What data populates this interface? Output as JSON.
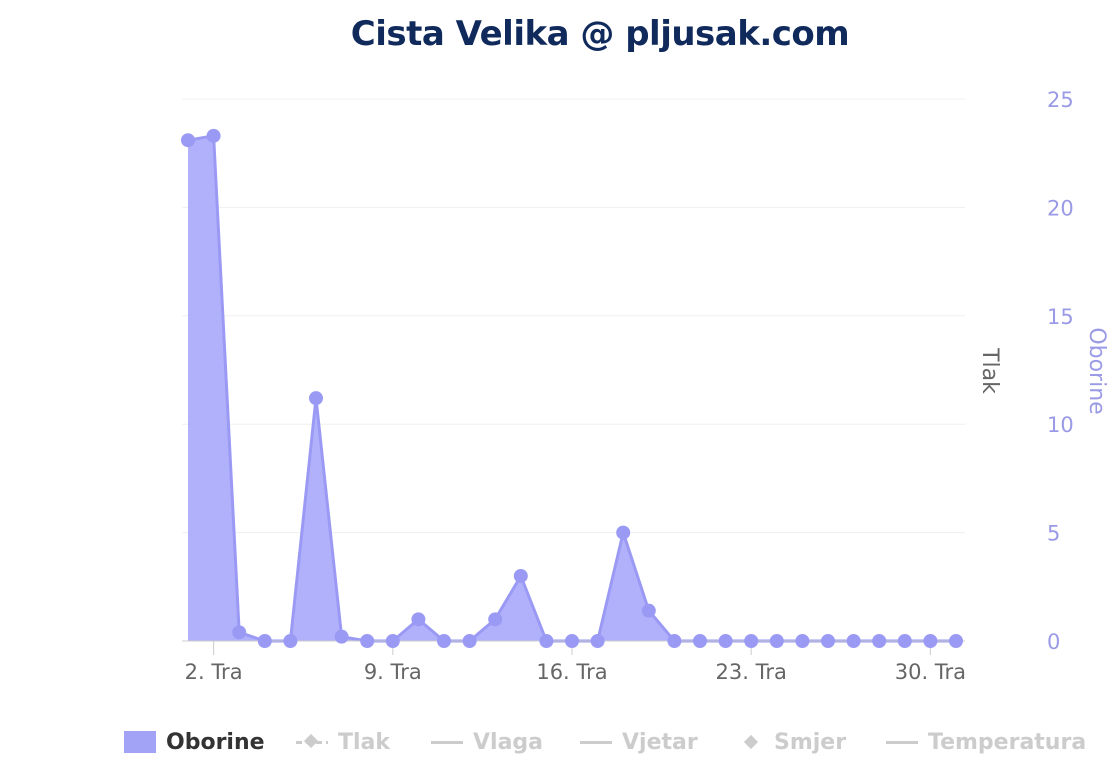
{
  "title": "Cista Velika @ pljusak.com",
  "colors": {
    "series": "#9a9af5",
    "fill": "#a9a9fb",
    "axis_text": "#9a9ae6",
    "title": "#102a5c",
    "grid": "#f0f0f0"
  },
  "chart_data": {
    "type": "area",
    "title": "Cista Velika @ pljusak.com",
    "x_tick_labels": [
      "2. Tra",
      "9. Tra",
      "16. Tra",
      "23. Tra",
      "30. Tra"
    ],
    "x_tick_days": [
      2,
      9,
      16,
      23,
      30
    ],
    "x": [
      1,
      2,
      3,
      4,
      5,
      6,
      7,
      8,
      9,
      10,
      11,
      12,
      13,
      14,
      15,
      16,
      17,
      18,
      19,
      20,
      21,
      22,
      23,
      24,
      25,
      26,
      27,
      28,
      29,
      30,
      31
    ],
    "y_axis_right": {
      "label": "Oborine",
      "ticks": [
        0,
        5,
        10,
        15,
        20,
        25
      ],
      "ylim": [
        0,
        25
      ]
    },
    "y_axis_hidden_label": "Tlak",
    "grid": true,
    "series": [
      {
        "name": "Oborine",
        "visible": true,
        "values": [
          23.1,
          23.3,
          0.4,
          0.0,
          0.0,
          11.2,
          0.2,
          0.0,
          0.0,
          1.0,
          0.0,
          0.0,
          1.0,
          3.0,
          0.0,
          0.0,
          0.0,
          5.0,
          1.4,
          0.0,
          0.0,
          0.0,
          0.0,
          0.0,
          0.0,
          0.0,
          0.0,
          0.0,
          0.0,
          0.0,
          0.0
        ]
      }
    ],
    "legend": {
      "placement": "bottom",
      "items": [
        {
          "name": "Oborine",
          "visible": true,
          "marker": "area"
        },
        {
          "name": "Tlak",
          "visible": false,
          "marker": "dash-diamond"
        },
        {
          "name": "Vlaga",
          "visible": false,
          "marker": "line"
        },
        {
          "name": "Vjetar",
          "visible": false,
          "marker": "line"
        },
        {
          "name": "Smjer",
          "visible": false,
          "marker": "diamond"
        },
        {
          "name": "Temperatura",
          "visible": false,
          "marker": "line"
        }
      ]
    }
  }
}
